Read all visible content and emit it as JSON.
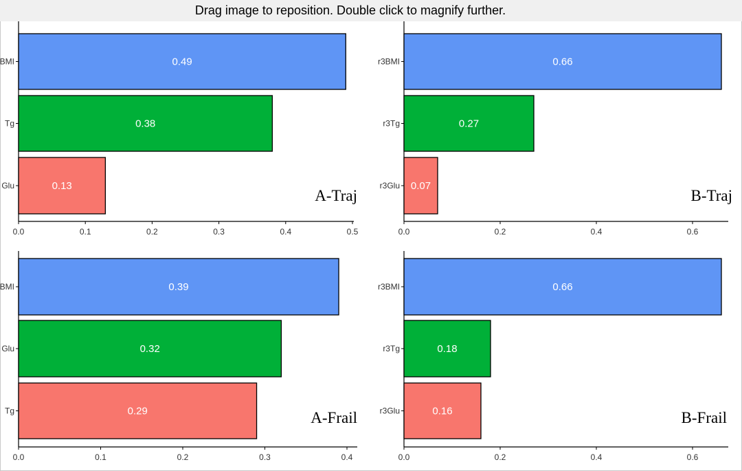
{
  "banner": {
    "text": "Drag image to reposition. Double click to magnify further."
  },
  "colors": {
    "bmi": "#5f95f5",
    "tg": "#00b038",
    "glu": "#f8766d",
    "edge": "#000000"
  },
  "chart_data": [
    {
      "type": "bar",
      "orientation": "horizontal",
      "title": "A-Traj",
      "categories": [
        "BMI",
        "Tg",
        "Glu"
      ],
      "values": [
        0.49,
        0.38,
        0.13
      ],
      "value_labels": [
        "0.49",
        "0.38",
        "0.13"
      ],
      "color_keys": [
        "bmi",
        "tg",
        "glu"
      ],
      "xlim": [
        0,
        0.5
      ],
      "xticks": [
        0.0,
        0.1,
        0.2,
        0.3,
        0.4,
        0.5
      ],
      "xtick_labels": [
        "0.0",
        "0.1",
        "0.2",
        "0.3",
        "0.4",
        "0.5"
      ]
    },
    {
      "type": "bar",
      "orientation": "horizontal",
      "title": "B-Traj",
      "categories": [
        "r3BMI",
        "r3Tg",
        "r3Glu"
      ],
      "values": [
        0.66,
        0.27,
        0.07
      ],
      "value_labels": [
        "0.66",
        "0.27",
        "0.07"
      ],
      "color_keys": [
        "bmi",
        "tg",
        "glu"
      ],
      "xlim": [
        0,
        0.66
      ],
      "xticks": [
        0.0,
        0.2,
        0.4,
        0.6
      ],
      "xtick_labels": [
        "0.0",
        "0.2",
        "0.4",
        "0.6"
      ]
    },
    {
      "type": "bar",
      "orientation": "horizontal",
      "title": "A-Frail",
      "categories": [
        "BMI",
        "Glu",
        "Tg"
      ],
      "values": [
        0.39,
        0.32,
        0.29
      ],
      "value_labels": [
        "0.39",
        "0.32",
        "0.29"
      ],
      "color_keys": [
        "bmi",
        "tg",
        "glu"
      ],
      "xlim": [
        0,
        0.4
      ],
      "xticks": [
        0.0,
        0.1,
        0.2,
        0.3,
        0.4
      ],
      "xtick_labels": [
        "0.0",
        "0.1",
        "0.2",
        "0.3",
        "0.4"
      ]
    },
    {
      "type": "bar",
      "orientation": "horizontal",
      "title": "B-Frail",
      "categories": [
        "r3BMI",
        "r3Tg",
        "r3Glu"
      ],
      "values": [
        0.66,
        0.18,
        0.16
      ],
      "value_labels": [
        "0.66",
        "0.18",
        "0.16"
      ],
      "color_keys": [
        "bmi",
        "tg",
        "glu"
      ],
      "xlim": [
        0,
        0.66
      ],
      "xticks": [
        0.0,
        0.2,
        0.4,
        0.6
      ],
      "xtick_labels": [
        "0.0",
        "0.2",
        "0.4",
        "0.6"
      ]
    }
  ]
}
